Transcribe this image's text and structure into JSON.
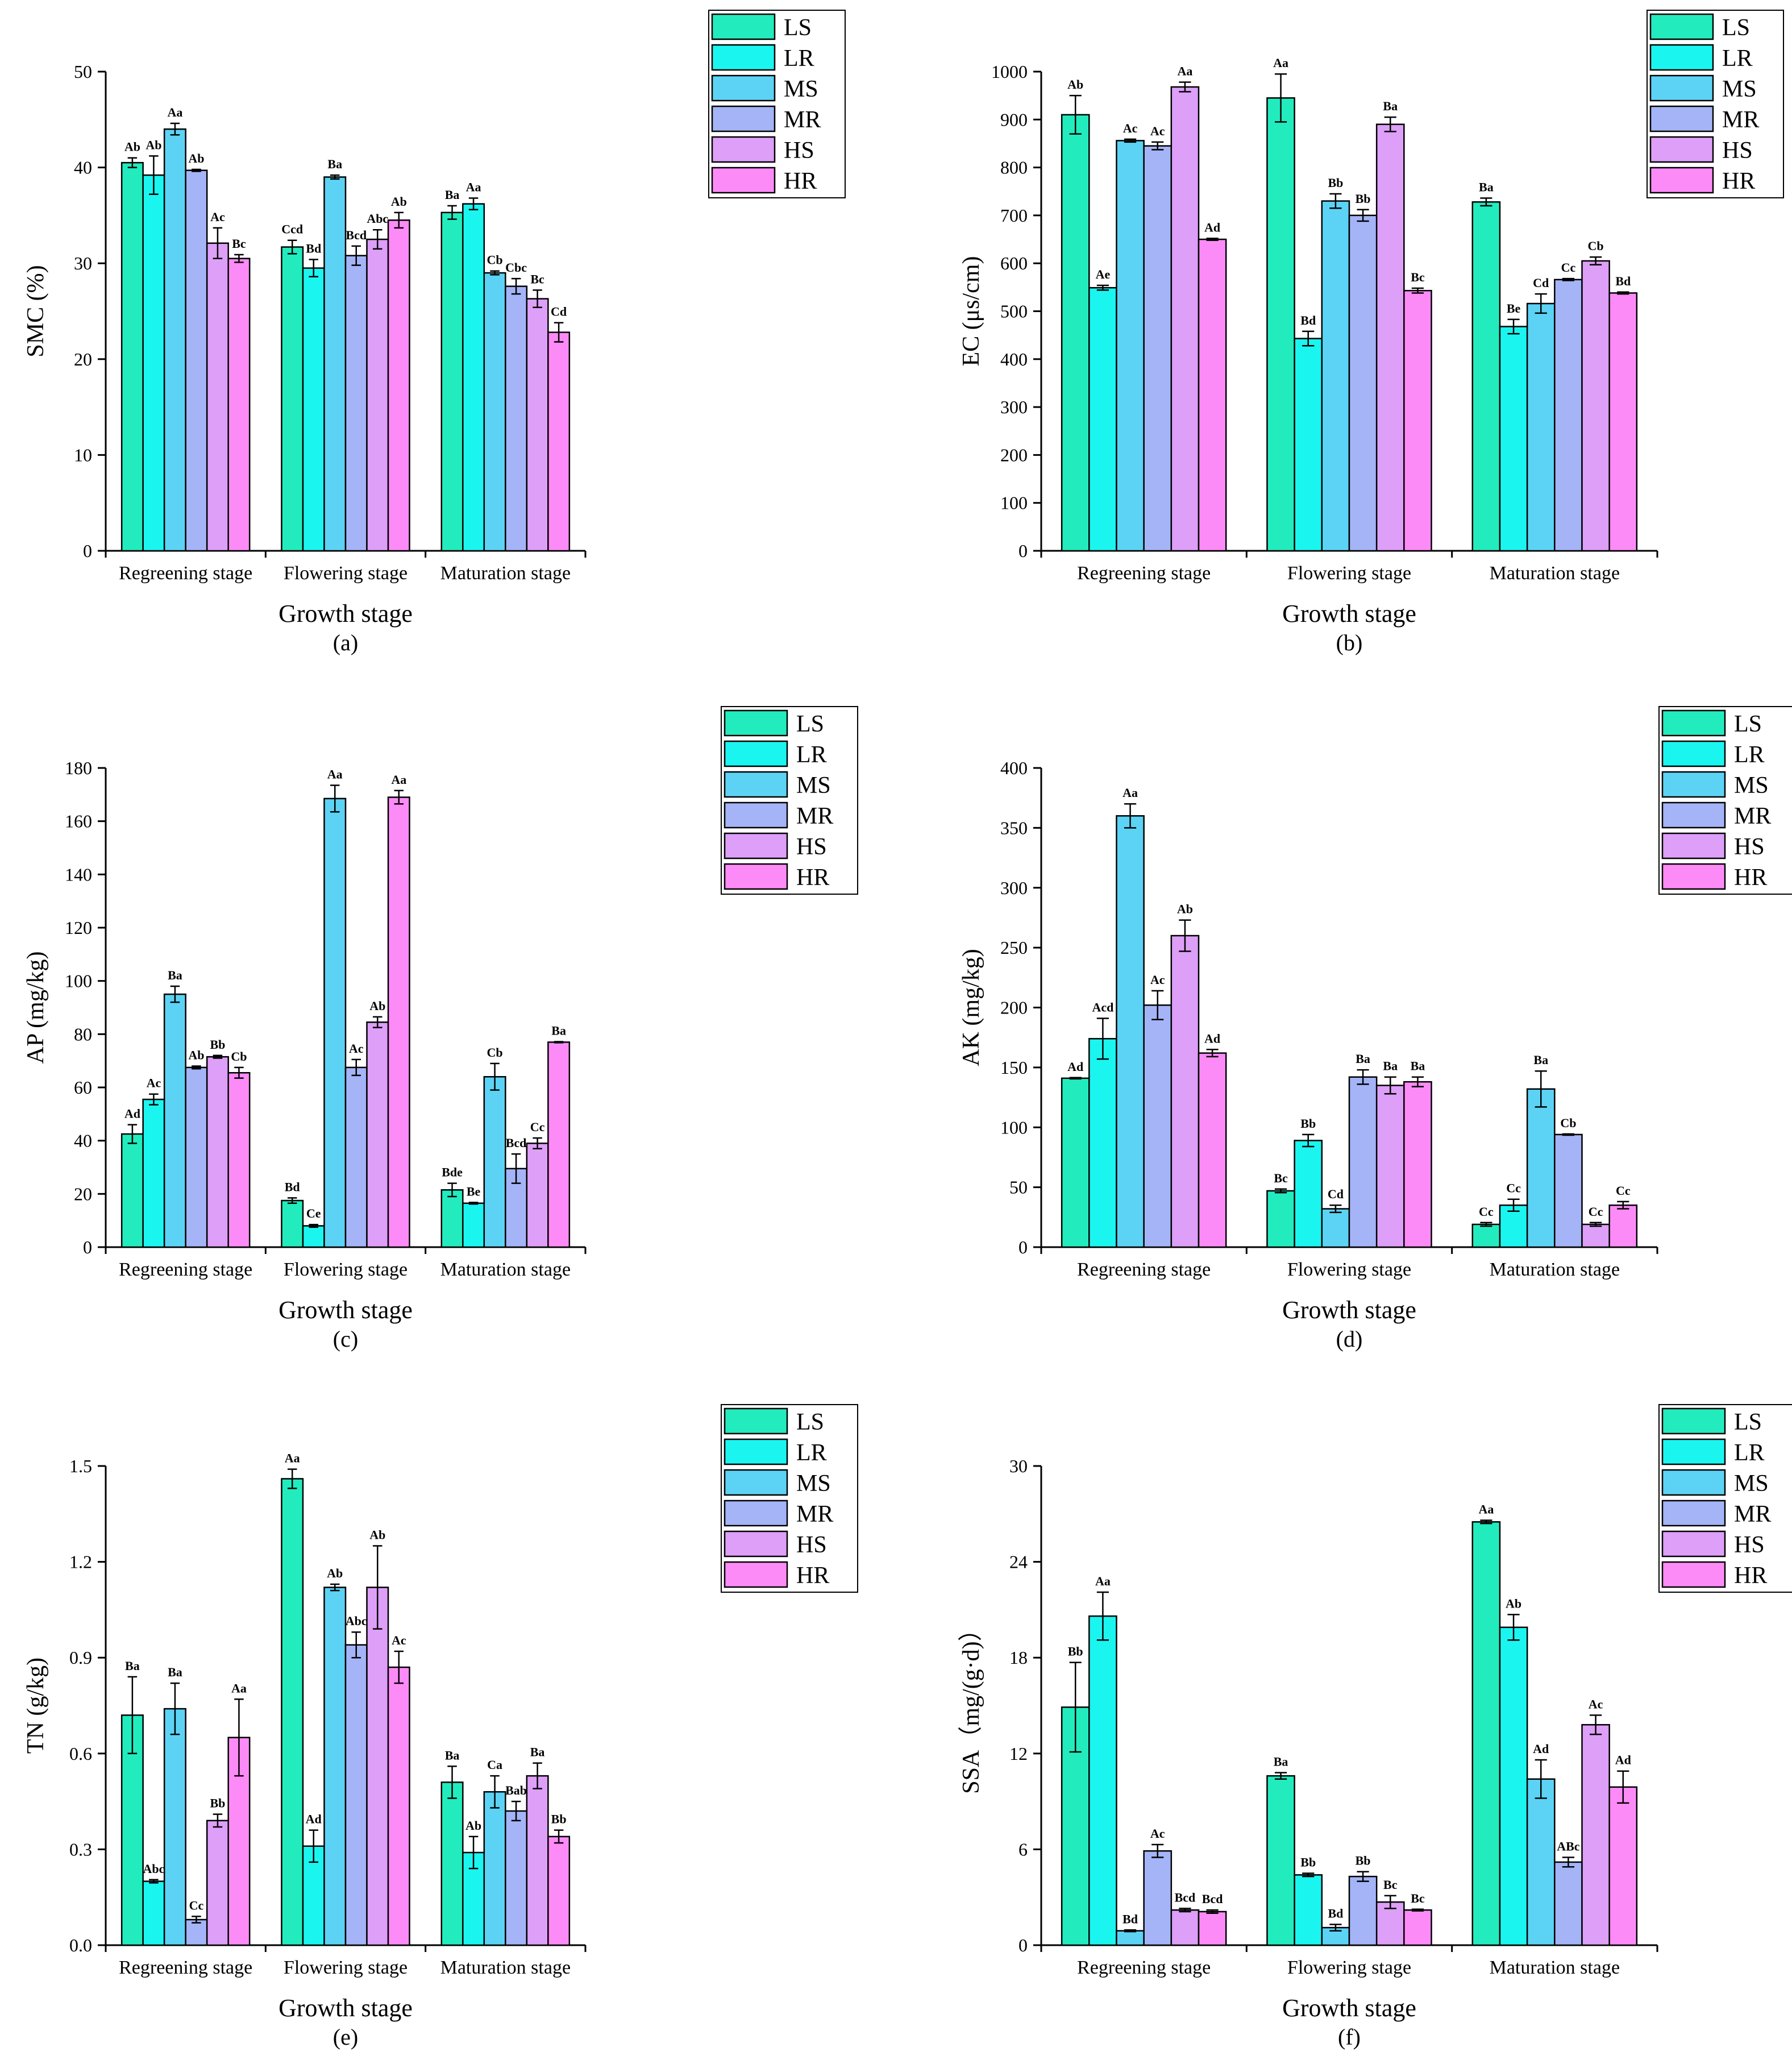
{
  "figure": {
    "series_names": [
      "LS",
      "LR",
      "MS",
      "MR",
      "HS",
      "HR"
    ],
    "series_colors": [
      "#22ecbe",
      "#1bf5f0",
      "#5cd3f4",
      "#a4b4f7",
      "#dd9ff7",
      "#fd8bf7"
    ]
  },
  "chart_data": [
    {
      "type": "bar",
      "panel": "(a)",
      "categories": [
        "Regreening stage",
        "Flowering stage",
        "Maturation stage"
      ],
      "xlabel": "Growth stage",
      "ylabel": "SMC (%)",
      "ylim": [
        0,
        50
      ],
      "yticks": [
        0,
        10,
        20,
        30,
        40,
        50
      ],
      "legend": "top-right",
      "series": [
        {
          "name": "LS",
          "values": [
            40.5,
            31.7,
            35.3
          ],
          "errors": [
            0.5,
            0.7,
            0.7
          ],
          "labels": [
            "Ab",
            "Ccd",
            "Ba"
          ]
        },
        {
          "name": "LR",
          "values": [
            39.2,
            29.5,
            36.2
          ],
          "errors": [
            2.0,
            0.9,
            0.6
          ],
          "labels": [
            "Ab",
            "Bd",
            "Aa"
          ]
        },
        {
          "name": "MS",
          "values": [
            44.0,
            39.0,
            29.0
          ],
          "errors": [
            0.6,
            0.2,
            0.2
          ],
          "labels": [
            "Aa",
            "Ba",
            "Cb"
          ]
        },
        {
          "name": "MR",
          "values": [
            39.7,
            30.8,
            27.6
          ],
          "errors": [
            0.1,
            1.0,
            0.8
          ],
          "labels": [
            "Ab",
            "Bcd",
            "Cbc"
          ]
        },
        {
          "name": "HS",
          "values": [
            32.1,
            32.5,
            26.3
          ],
          "errors": [
            1.6,
            1.0,
            0.9
          ],
          "labels": [
            "Ac",
            "Abc",
            "Bc"
          ]
        },
        {
          "name": "HR",
          "values": [
            30.5,
            34.5,
            22.8
          ],
          "errors": [
            0.4,
            0.8,
            1.0
          ],
          "labels": [
            "Bc",
            "Ab",
            "Cd"
          ]
        }
      ]
    },
    {
      "type": "bar",
      "panel": "(b)",
      "categories": [
        "Regreening stage",
        "Flowering stage",
        "Maturation stage"
      ],
      "xlabel": "Growth stage",
      "ylabel": "EC (μs/cm)",
      "ylim": [
        0,
        1000
      ],
      "yticks": [
        0,
        100,
        200,
        300,
        400,
        500,
        600,
        700,
        800,
        900,
        1000
      ],
      "legend": "top-right",
      "series": [
        {
          "name": "LS",
          "values": [
            910,
            945,
            728
          ],
          "errors": [
            40,
            50,
            8
          ],
          "labels": [
            "Ab",
            "Aa",
            "Ba"
          ]
        },
        {
          "name": "LR",
          "values": [
            549,
            443,
            468
          ],
          "errors": [
            5,
            15,
            15
          ],
          "labels": [
            "Ae",
            "Bd",
            "Be"
          ]
        },
        {
          "name": "MS",
          "values": [
            856,
            730,
            516
          ],
          "errors": [
            3,
            15,
            20
          ],
          "labels": [
            "Ac",
            "Bb",
            "Cd"
          ]
        },
        {
          "name": "MR",
          "values": [
            845,
            700,
            566
          ],
          "errors": [
            8,
            12,
            2
          ],
          "labels": [
            "Ac",
            "Bb",
            "Cc"
          ]
        },
        {
          "name": "HS",
          "values": [
            968,
            890,
            605
          ],
          "errors": [
            10,
            15,
            8
          ],
          "labels": [
            "Aa",
            "Ba",
            "Cb"
          ]
        },
        {
          "name": "HR",
          "values": [
            650,
            543,
            538
          ],
          "errors": [
            2,
            5,
            2
          ],
          "labels": [
            "Ad",
            "Bc",
            "Bd"
          ]
        }
      ]
    },
    {
      "type": "bar",
      "panel": "(c)",
      "categories": [
        "Regreening stage",
        "Flowering stage",
        "Maturation stage"
      ],
      "xlabel": "Growth stage",
      "ylabel": "AP (mg/kg)",
      "ylim": [
        0,
        180
      ],
      "yticks": [
        0,
        20,
        40,
        60,
        80,
        100,
        120,
        140,
        160,
        180
      ],
      "legend": "top-right",
      "series": [
        {
          "name": "LS",
          "values": [
            42.5,
            17.5,
            21.5
          ],
          "errors": [
            3.5,
            1.0,
            2.5
          ],
          "labels": [
            "Ad",
            "Bd",
            "Bde"
          ]
        },
        {
          "name": "LR",
          "values": [
            55.5,
            8.0,
            16.5
          ],
          "errors": [
            2.0,
            0.5,
            0.3
          ],
          "labels": [
            "Ac",
            "Ce",
            "Be"
          ]
        },
        {
          "name": "MS",
          "values": [
            95.0,
            168.5,
            64.0
          ],
          "errors": [
            3.0,
            5.0,
            5.0
          ],
          "labels": [
            "Ba",
            "Aa",
            "Cb"
          ]
        },
        {
          "name": "MR",
          "values": [
            67.5,
            67.5,
            29.5
          ],
          "errors": [
            0.5,
            3.0,
            5.5
          ],
          "labels": [
            "Ab",
            "Ac",
            "Bcd"
          ]
        },
        {
          "name": "HS",
          "values": [
            71.5,
            84.5,
            39.0
          ],
          "errors": [
            0.5,
            2.0,
            2.0
          ],
          "labels": [
            "Bb",
            "Ab",
            "Cc"
          ]
        },
        {
          "name": "HR",
          "values": [
            65.5,
            169.0,
            77.0
          ],
          "errors": [
            2.0,
            2.5,
            0.2
          ],
          "labels": [
            "Cb",
            "Aa",
            "Ba"
          ]
        }
      ]
    },
    {
      "type": "bar",
      "panel": "(d)",
      "categories": [
        "Regreening stage",
        "Flowering stage",
        "Maturation stage"
      ],
      "xlabel": "Growth stage",
      "ylabel": "AK (mg/kg)",
      "ylim": [
        0,
        400
      ],
      "yticks": [
        0,
        50,
        100,
        150,
        200,
        250,
        300,
        350,
        400
      ],
      "legend": "top-right",
      "series": [
        {
          "name": "LS",
          "values": [
            141,
            47,
            19
          ],
          "errors": [
            0.5,
            1.5,
            1.5
          ],
          "labels": [
            "Ad",
            "Bc",
            "Cc"
          ]
        },
        {
          "name": "LR",
          "values": [
            174,
            89,
            35
          ],
          "errors": [
            17,
            5,
            5
          ],
          "labels": [
            "Acd",
            "Bb",
            "Cc"
          ]
        },
        {
          "name": "MS",
          "values": [
            360,
            32,
            132
          ],
          "errors": [
            10,
            3,
            15
          ],
          "labels": [
            "Aa",
            "Cd",
            "Ba"
          ]
        },
        {
          "name": "MR",
          "values": [
            202,
            142,
            94
          ],
          "errors": [
            12,
            6,
            0.5
          ],
          "labels": [
            "Ac",
            "Ba",
            "Cb"
          ]
        },
        {
          "name": "HS",
          "values": [
            260,
            135,
            19
          ],
          "errors": [
            13,
            7,
            1.5
          ],
          "labels": [
            "Ab",
            "Ba",
            "Cc"
          ]
        },
        {
          "name": "HR",
          "values": [
            162,
            138,
            35
          ],
          "errors": [
            3,
            4,
            3
          ],
          "labels": [
            "Ad",
            "Ba",
            "Cc"
          ]
        }
      ]
    },
    {
      "type": "bar",
      "panel": "(e)",
      "categories": [
        "Regreening stage",
        "Flowering stage",
        "Maturation stage"
      ],
      "xlabel": "Growth stage",
      "ylabel": "TN (g/kg)",
      "ylim": [
        0,
        1.5
      ],
      "yticks": [
        "0.0",
        "0.3",
        "0.6",
        "0.9",
        "1.2",
        "1.5"
      ],
      "legend": "top-right",
      "series": [
        {
          "name": "LS",
          "values": [
            0.72,
            1.46,
            0.51
          ],
          "errors": [
            0.12,
            0.03,
            0.05
          ],
          "labels": [
            "Ba",
            "Aa",
            "Ba"
          ]
        },
        {
          "name": "LR",
          "values": [
            0.2,
            0.31,
            0.29
          ],
          "errors": [
            0.005,
            0.05,
            0.05
          ],
          "labels": [
            "Abc",
            "Ad",
            "Ab"
          ]
        },
        {
          "name": "MS",
          "values": [
            0.74,
            1.12,
            0.48
          ],
          "errors": [
            0.08,
            0.01,
            0.05
          ],
          "labels": [
            "Ba",
            "Ab",
            "Ca"
          ]
        },
        {
          "name": "MR",
          "values": [
            0.08,
            0.94,
            0.42
          ],
          "errors": [
            0.01,
            0.04,
            0.03
          ],
          "labels": [
            "Cc",
            "Abc",
            "Bab"
          ]
        },
        {
          "name": "HS",
          "values": [
            0.39,
            1.12,
            0.53
          ],
          "errors": [
            0.02,
            0.13,
            0.04
          ],
          "labels": [
            "Bb",
            "Ab",
            "Ba"
          ]
        },
        {
          "name": "HR",
          "values": [
            0.65,
            0.87,
            0.34
          ],
          "errors": [
            0.12,
            0.05,
            0.02
          ],
          "labels": [
            "Aa",
            "Ac",
            "Bb"
          ]
        }
      ]
    },
    {
      "type": "bar",
      "panel": "(f)",
      "categories": [
        "Regreening stage",
        "Flowering stage",
        "Maturation stage"
      ],
      "xlabel": "Growth stage",
      "ylabel": "SSA（mg/(g·d)）",
      "ylim": [
        0,
        30
      ],
      "yticks": [
        0,
        6,
        12,
        18,
        24,
        30
      ],
      "legend": "top-right",
      "series": [
        {
          "name": "LS",
          "values": [
            14.9,
            10.6,
            26.5
          ],
          "errors": [
            2.8,
            0.2,
            0.1
          ],
          "labels": [
            "Bb",
            "Ba",
            "Aa"
          ]
        },
        {
          "name": "LR",
          "values": [
            20.6,
            4.4,
            19.9
          ],
          "errors": [
            1.5,
            0.1,
            0.8
          ],
          "labels": [
            "Aa",
            "Bb",
            "Ab"
          ]
        },
        {
          "name": "MS",
          "values": [
            0.9,
            1.1,
            10.4
          ],
          "errors": [
            0.05,
            0.2,
            1.2
          ],
          "labels": [
            "Bd",
            "Bd",
            "Ad"
          ]
        },
        {
          "name": "MR",
          "values": [
            5.9,
            4.3,
            5.2
          ],
          "errors": [
            0.4,
            0.3,
            0.3
          ],
          "labels": [
            "Ac",
            "Bb",
            "ABc"
          ]
        },
        {
          "name": "HS",
          "values": [
            2.2,
            2.7,
            13.8
          ],
          "errors": [
            0.1,
            0.4,
            0.6
          ],
          "labels": [
            "Bcd",
            "Bc",
            "Ac"
          ]
        },
        {
          "name": "HR",
          "values": [
            2.1,
            2.2,
            9.9
          ],
          "errors": [
            0.1,
            0.05,
            1.0
          ],
          "labels": [
            "Bcd",
            "Bc",
            "Ad"
          ]
        }
      ]
    }
  ]
}
